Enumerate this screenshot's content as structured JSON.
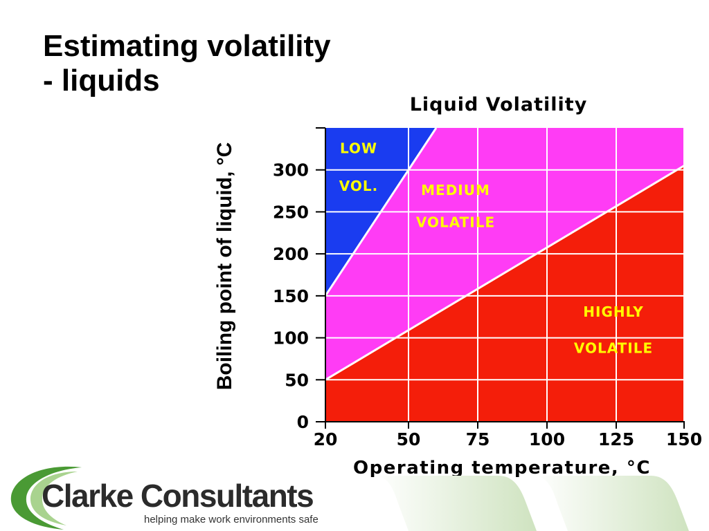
{
  "slide": {
    "title_line1": "Estimating volatility",
    "title_line2": "- liquids"
  },
  "logo": {
    "name": "Clarke Consultants",
    "tagline": "helping make work environments safe"
  },
  "chart_data": {
    "type": "area",
    "title": "Liquid Volatility",
    "xlabel": "Operating temperature, °C",
    "ylabel": "Boiling point of liquid, °C",
    "xlim": [
      20,
      150
    ],
    "ylim": [
      0,
      350
    ],
    "x_ticks": [
      20,
      50,
      75,
      100,
      125,
      150
    ],
    "y_ticks": [
      0,
      50,
      100,
      150,
      200,
      250,
      300
    ],
    "grid": true,
    "boundaries": [
      {
        "name": "low-medium",
        "x": [
          20,
          60
        ],
        "y": [
          150,
          350
        ]
      },
      {
        "name": "medium-high",
        "x": [
          20,
          150
        ],
        "y": [
          50,
          305
        ]
      }
    ],
    "regions": [
      {
        "label_lines": [
          "LOW",
          "VOL."
        ],
        "color": "#1a3cf0"
      },
      {
        "label_lines": [
          "MEDIUM",
          "VOLATILE"
        ],
        "color": "#ff3cf5"
      },
      {
        "label_lines": [
          "HIGHLY",
          "VOLATILE"
        ],
        "color": "#f41e0a"
      }
    ],
    "region_label_anchors": [
      {
        "x": 32,
        "y": [
          320,
          275
        ]
      },
      {
        "x": 67,
        "y": [
          270,
          232
        ]
      },
      {
        "x": 124,
        "y": [
          125,
          82
        ]
      }
    ]
  },
  "colors": {
    "low_region": "#1a3cf0",
    "medium_region": "#ff3cf5",
    "high_region": "#f41e0a",
    "region_text": "#ffff00",
    "gridline": "#ffffff",
    "logo_green": "#4a9a34"
  }
}
